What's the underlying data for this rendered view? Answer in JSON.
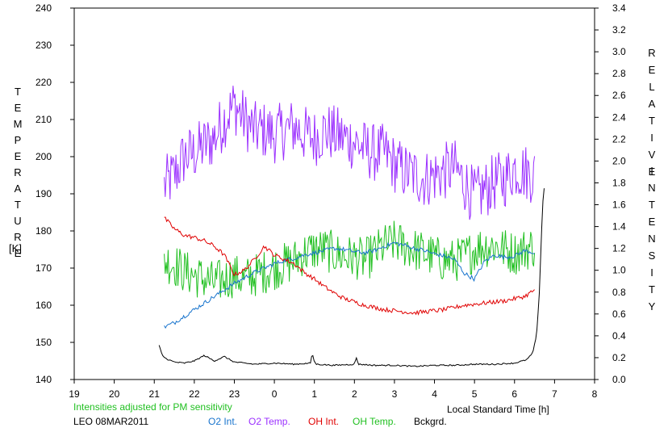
{
  "colors": {
    "o2_int": "#1874cd",
    "o2_temp": "#9b30ff",
    "oh_int": "#e00000",
    "oh_temp": "#22c022",
    "bckgrd": "#000000",
    "note": "#22c022"
  },
  "labels": {
    "left_axis_title": "TEMPERATURE",
    "left_axis_unit": "[K]",
    "right_axis_title_1": "RELATIVE",
    "right_axis_title_2": "INTENSITY",
    "x_axis_title": "Local Standard Time [h]",
    "note": "Intensities adjusted for PM sensitivity",
    "station": "LEO 08MAR2011"
  },
  "legend": [
    {
      "key": "o2_int",
      "label": "O2 Int."
    },
    {
      "key": "o2_temp",
      "label": "O2 Temp."
    },
    {
      "key": "oh_int",
      "label": "OH Int."
    },
    {
      "key": "oh_temp",
      "label": "OH Temp."
    },
    {
      "key": "bckgrd",
      "label": "Bckgrd."
    }
  ],
  "chart_data": {
    "type": "line",
    "x_ticks": [
      "19",
      "20",
      "21",
      "22",
      "23",
      "0",
      "1",
      "2",
      "3",
      "4",
      "5",
      "6",
      "7",
      "8"
    ],
    "x_range": [
      19,
      32
    ],
    "y_left_ticks": [
      "140",
      "150",
      "160",
      "170",
      "180",
      "190",
      "200",
      "210",
      "220",
      "230",
      "240"
    ],
    "y_left_range": [
      140,
      240
    ],
    "y_right_ticks": [
      "0.0",
      "0.2",
      "0.4",
      "0.6",
      "0.8",
      "1.0",
      "1.2",
      "1.4",
      "1.6",
      "1.8",
      "2.0",
      "2.2",
      "2.4",
      "2.6",
      "2.8",
      "3.0",
      "3.2",
      "3.4"
    ],
    "y_right_range": [
      0.0,
      3.4
    ],
    "grid": false,
    "series": [
      {
        "name": "O2 Temp.",
        "key": "o2_temp",
        "axis": "left",
        "x": [
          21.25,
          21.5,
          21.75,
          22.0,
          22.25,
          22.5,
          22.75,
          23.0,
          23.25,
          23.5,
          23.75,
          24.0,
          24.25,
          24.5,
          24.75,
          25.0,
          25.25,
          25.5,
          25.75,
          26.0,
          26.25,
          26.5,
          26.75,
          27.0,
          27.25,
          27.5,
          27.75,
          28.0,
          28.25,
          28.5,
          28.75,
          29.0,
          29.25,
          29.5,
          29.75,
          30.0,
          30.25,
          30.5
        ],
        "y": [
          192,
          195,
          200,
          201,
          203,
          205,
          210,
          214,
          210,
          207,
          207,
          206,
          207,
          208,
          206,
          205,
          207,
          206,
          205,
          204,
          202,
          201,
          201,
          198,
          196,
          195,
          194,
          195,
          196,
          197,
          193,
          189,
          191,
          193,
          194,
          197,
          196,
          195
        ],
        "amp": 8
      },
      {
        "name": "OH Temp.",
        "key": "oh_temp",
        "axis": "left",
        "x": [
          21.25,
          21.5,
          21.75,
          22.0,
          22.25,
          22.5,
          22.75,
          23.0,
          23.25,
          23.5,
          23.75,
          24.0,
          24.25,
          24.5,
          24.75,
          25.0,
          25.25,
          25.5,
          25.75,
          26.0,
          26.25,
          26.5,
          26.75,
          27.0,
          27.25,
          27.5,
          27.75,
          28.0,
          28.25,
          28.5,
          28.75,
          29.0,
          29.25,
          29.5,
          29.75,
          30.0,
          30.25,
          30.5
        ],
        "y": [
          172,
          171,
          169,
          168,
          167,
          166,
          167,
          168,
          167,
          168,
          169,
          170,
          171,
          172,
          174,
          175,
          175,
          174,
          173,
          173,
          172,
          174,
          176,
          177,
          176,
          175,
          174,
          173,
          172,
          172,
          173,
          175,
          176,
          176,
          175,
          174,
          175,
          176
        ],
        "amp": 6
      },
      {
        "name": "O2 Int.",
        "key": "o2_int",
        "axis": "right",
        "x": [
          21.25,
          21.5,
          21.75,
          22.0,
          22.25,
          22.5,
          22.75,
          23.0,
          23.25,
          23.5,
          23.75,
          24.0,
          24.25,
          24.5,
          24.75,
          25.0,
          25.25,
          25.5,
          25.75,
          26.0,
          26.25,
          26.5,
          26.75,
          27.0,
          27.25,
          27.5,
          27.75,
          28.0,
          28.25,
          28.5,
          28.75,
          29.0,
          29.25,
          29.5,
          29.75,
          30.0,
          30.25,
          30.5
        ],
        "y": [
          0.48,
          0.52,
          0.58,
          0.64,
          0.7,
          0.76,
          0.82,
          0.88,
          0.93,
          0.98,
          1.02,
          1.06,
          1.09,
          1.11,
          1.14,
          1.16,
          1.18,
          1.2,
          1.19,
          1.17,
          1.16,
          1.18,
          1.22,
          1.25,
          1.23,
          1.2,
          1.18,
          1.15,
          1.13,
          1.1,
          0.97,
          0.92,
          1.08,
          1.14,
          1.12,
          1.13,
          1.18,
          1.16
        ],
        "amp": 0.02
      },
      {
        "name": "OH Int.",
        "key": "oh_int",
        "axis": "right",
        "x": [
          21.25,
          21.5,
          21.75,
          22.0,
          22.25,
          22.5,
          22.75,
          23.0,
          23.25,
          23.5,
          23.75,
          24.0,
          24.25,
          24.5,
          24.75,
          25.0,
          25.25,
          25.5,
          25.75,
          26.0,
          26.25,
          26.5,
          26.75,
          27.0,
          27.25,
          27.5,
          27.75,
          28.0,
          28.25,
          28.5,
          28.75,
          29.0,
          29.25,
          29.5,
          29.75,
          30.0,
          30.25,
          30.5
        ],
        "y": [
          1.48,
          1.38,
          1.32,
          1.3,
          1.27,
          1.22,
          1.14,
          0.96,
          1.0,
          1.1,
          1.22,
          1.14,
          1.1,
          1.06,
          0.98,
          0.92,
          0.85,
          0.79,
          0.74,
          0.71,
          0.68,
          0.66,
          0.64,
          0.63,
          0.62,
          0.61,
          0.62,
          0.63,
          0.64,
          0.66,
          0.68,
          0.69,
          0.7,
          0.71,
          0.72,
          0.74,
          0.76,
          0.82
        ],
        "amp": 0.02
      },
      {
        "name": "Bckgrd.",
        "key": "bckgrd",
        "axis": "right",
        "x": [
          21.12,
          21.2,
          21.3,
          21.5,
          21.75,
          22.0,
          22.25,
          22.5,
          22.75,
          23.0,
          23.5,
          24.0,
          24.5,
          24.9,
          24.95,
          25.0,
          25.05,
          25.5,
          26.0,
          26.05,
          26.1,
          26.5,
          27.0,
          27.5,
          28.0,
          28.5,
          29.0,
          29.5,
          30.0,
          30.3,
          30.45,
          30.55,
          30.62,
          30.66,
          30.7,
          30.74
        ],
        "y": [
          0.31,
          0.22,
          0.19,
          0.16,
          0.15,
          0.17,
          0.22,
          0.17,
          0.21,
          0.16,
          0.14,
          0.15,
          0.14,
          0.15,
          0.24,
          0.16,
          0.14,
          0.13,
          0.14,
          0.2,
          0.14,
          0.13,
          0.13,
          0.12,
          0.13,
          0.13,
          0.14,
          0.14,
          0.15,
          0.18,
          0.24,
          0.4,
          0.8,
          1.2,
          1.6,
          1.75
        ],
        "amp": 0.006
      }
    ]
  }
}
